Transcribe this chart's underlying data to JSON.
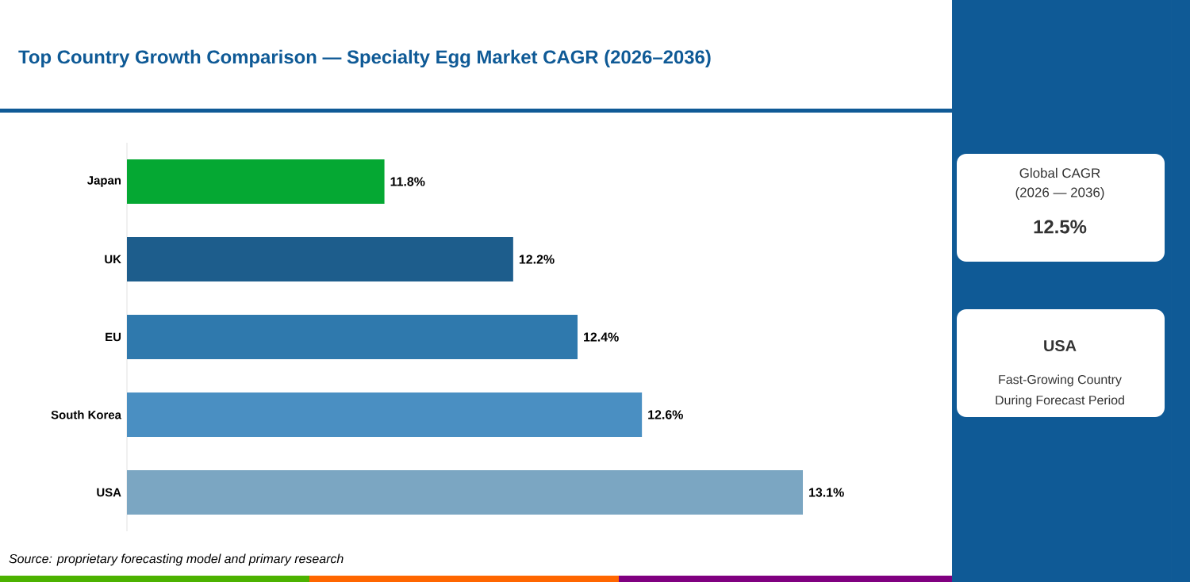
{
  "chart_data": {
    "type": "bar",
    "orientation": "horizontal",
    "title": "Top Country Growth Comparison — Specialty Egg Market CAGR (2026–2036)",
    "categories": [
      "Japan",
      "UK",
      "EU",
      "South Korea",
      "USA"
    ],
    "values": [
      11.8,
      12.2,
      12.4,
      12.6,
      13.1
    ],
    "value_labels": [
      "11.8%",
      "12.2%",
      "12.4%",
      "12.6%",
      "13.1%"
    ],
    "colors": [
      "#05a833",
      "#1d5d8c",
      "#2f79ad",
      "#4a8fc2",
      "#7ba6c2"
    ],
    "xlim": [
      11,
      13.1
    ],
    "tick_labels": "y",
    "annotations": [
      "Global CAGR",
      "(2026 — 2036)",
      "12.5%",
      "USA",
      "Fast-Growing Country",
      "During Forecast Period",
      "Source: proprietary forecasting model and primary research"
    ]
  }
}
